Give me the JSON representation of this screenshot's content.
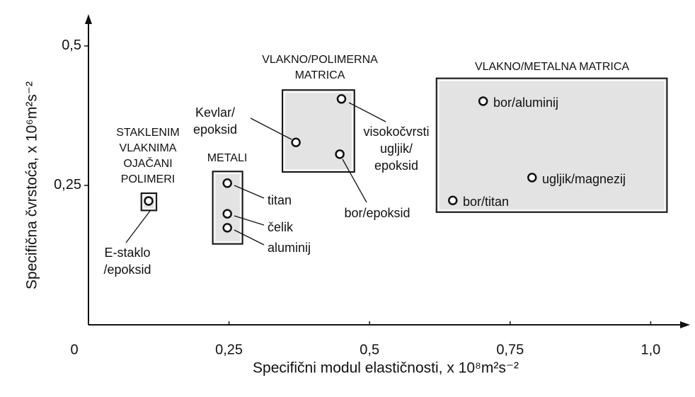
{
  "chart_data": {
    "type": "scatter",
    "xlabel": "Specifični modul elastičnosti, x 10⁸m²s⁻²",
    "ylabel": "Specifična čvrstoća, x 10⁶m²s⁻²",
    "xlim": [
      0,
      1.07
    ],
    "ylim": [
      0,
      0.557
    ],
    "xticks": [
      0,
      {
        "value": 0.25,
        "label": "0,25"
      },
      {
        "value": 0.5,
        "label": "0,5"
      },
      {
        "value": 0.75,
        "label": "0,75"
      },
      {
        "value": 1.0,
        "label": "1,0"
      }
    ],
    "yticks": [
      {
        "value": 0.25,
        "label": "0,25"
      },
      {
        "value": 0.5,
        "label": "0,5"
      }
    ],
    "x": [
      0.107,
      0.247,
      0.247,
      0.247,
      0.369,
      0.45,
      0.447,
      0.702,
      0.789,
      0.648
    ],
    "values": [
      0.222,
      0.254,
      0.199,
      0.174,
      0.327,
      0.405,
      0.306,
      0.401,
      0.264,
      0.223
    ],
    "point_labels": [
      [
        "E-staklo",
        "/epoksid"
      ],
      [
        "titan"
      ],
      [
        "čelik"
      ],
      [
        "aluminij"
      ],
      [
        "Kevlar/",
        "epoksid"
      ],
      [
        "visokočvrsti",
        "ugljik/",
        "epoksid"
      ],
      [
        "bor/epoksid"
      ],
      [
        "bor/aluminij"
      ],
      [
        "ugljik/magnezij"
      ],
      [
        "bor/titan"
      ]
    ],
    "groups": [
      {
        "label": [
          "STAKLENIM",
          "VLAKNIMA",
          "OJAČANI",
          "POLIMERI"
        ],
        "box": [
          0.094,
          0.121,
          0.205,
          0.236
        ]
      },
      {
        "label": [
          "METALI"
        ],
        "box": [
          0.221,
          0.274,
          0.145,
          0.275
        ]
      },
      {
        "label": [
          "VLAKNO/POLIMERNA",
          "MATRICA"
        ],
        "box": [
          0.345,
          0.473,
          0.274,
          0.421
        ]
      },
      {
        "label": [
          "VLAKNO/METALNA MATRICA"
        ],
        "box": [
          0.619,
          1.029,
          0.202,
          0.442
        ]
      }
    ]
  }
}
